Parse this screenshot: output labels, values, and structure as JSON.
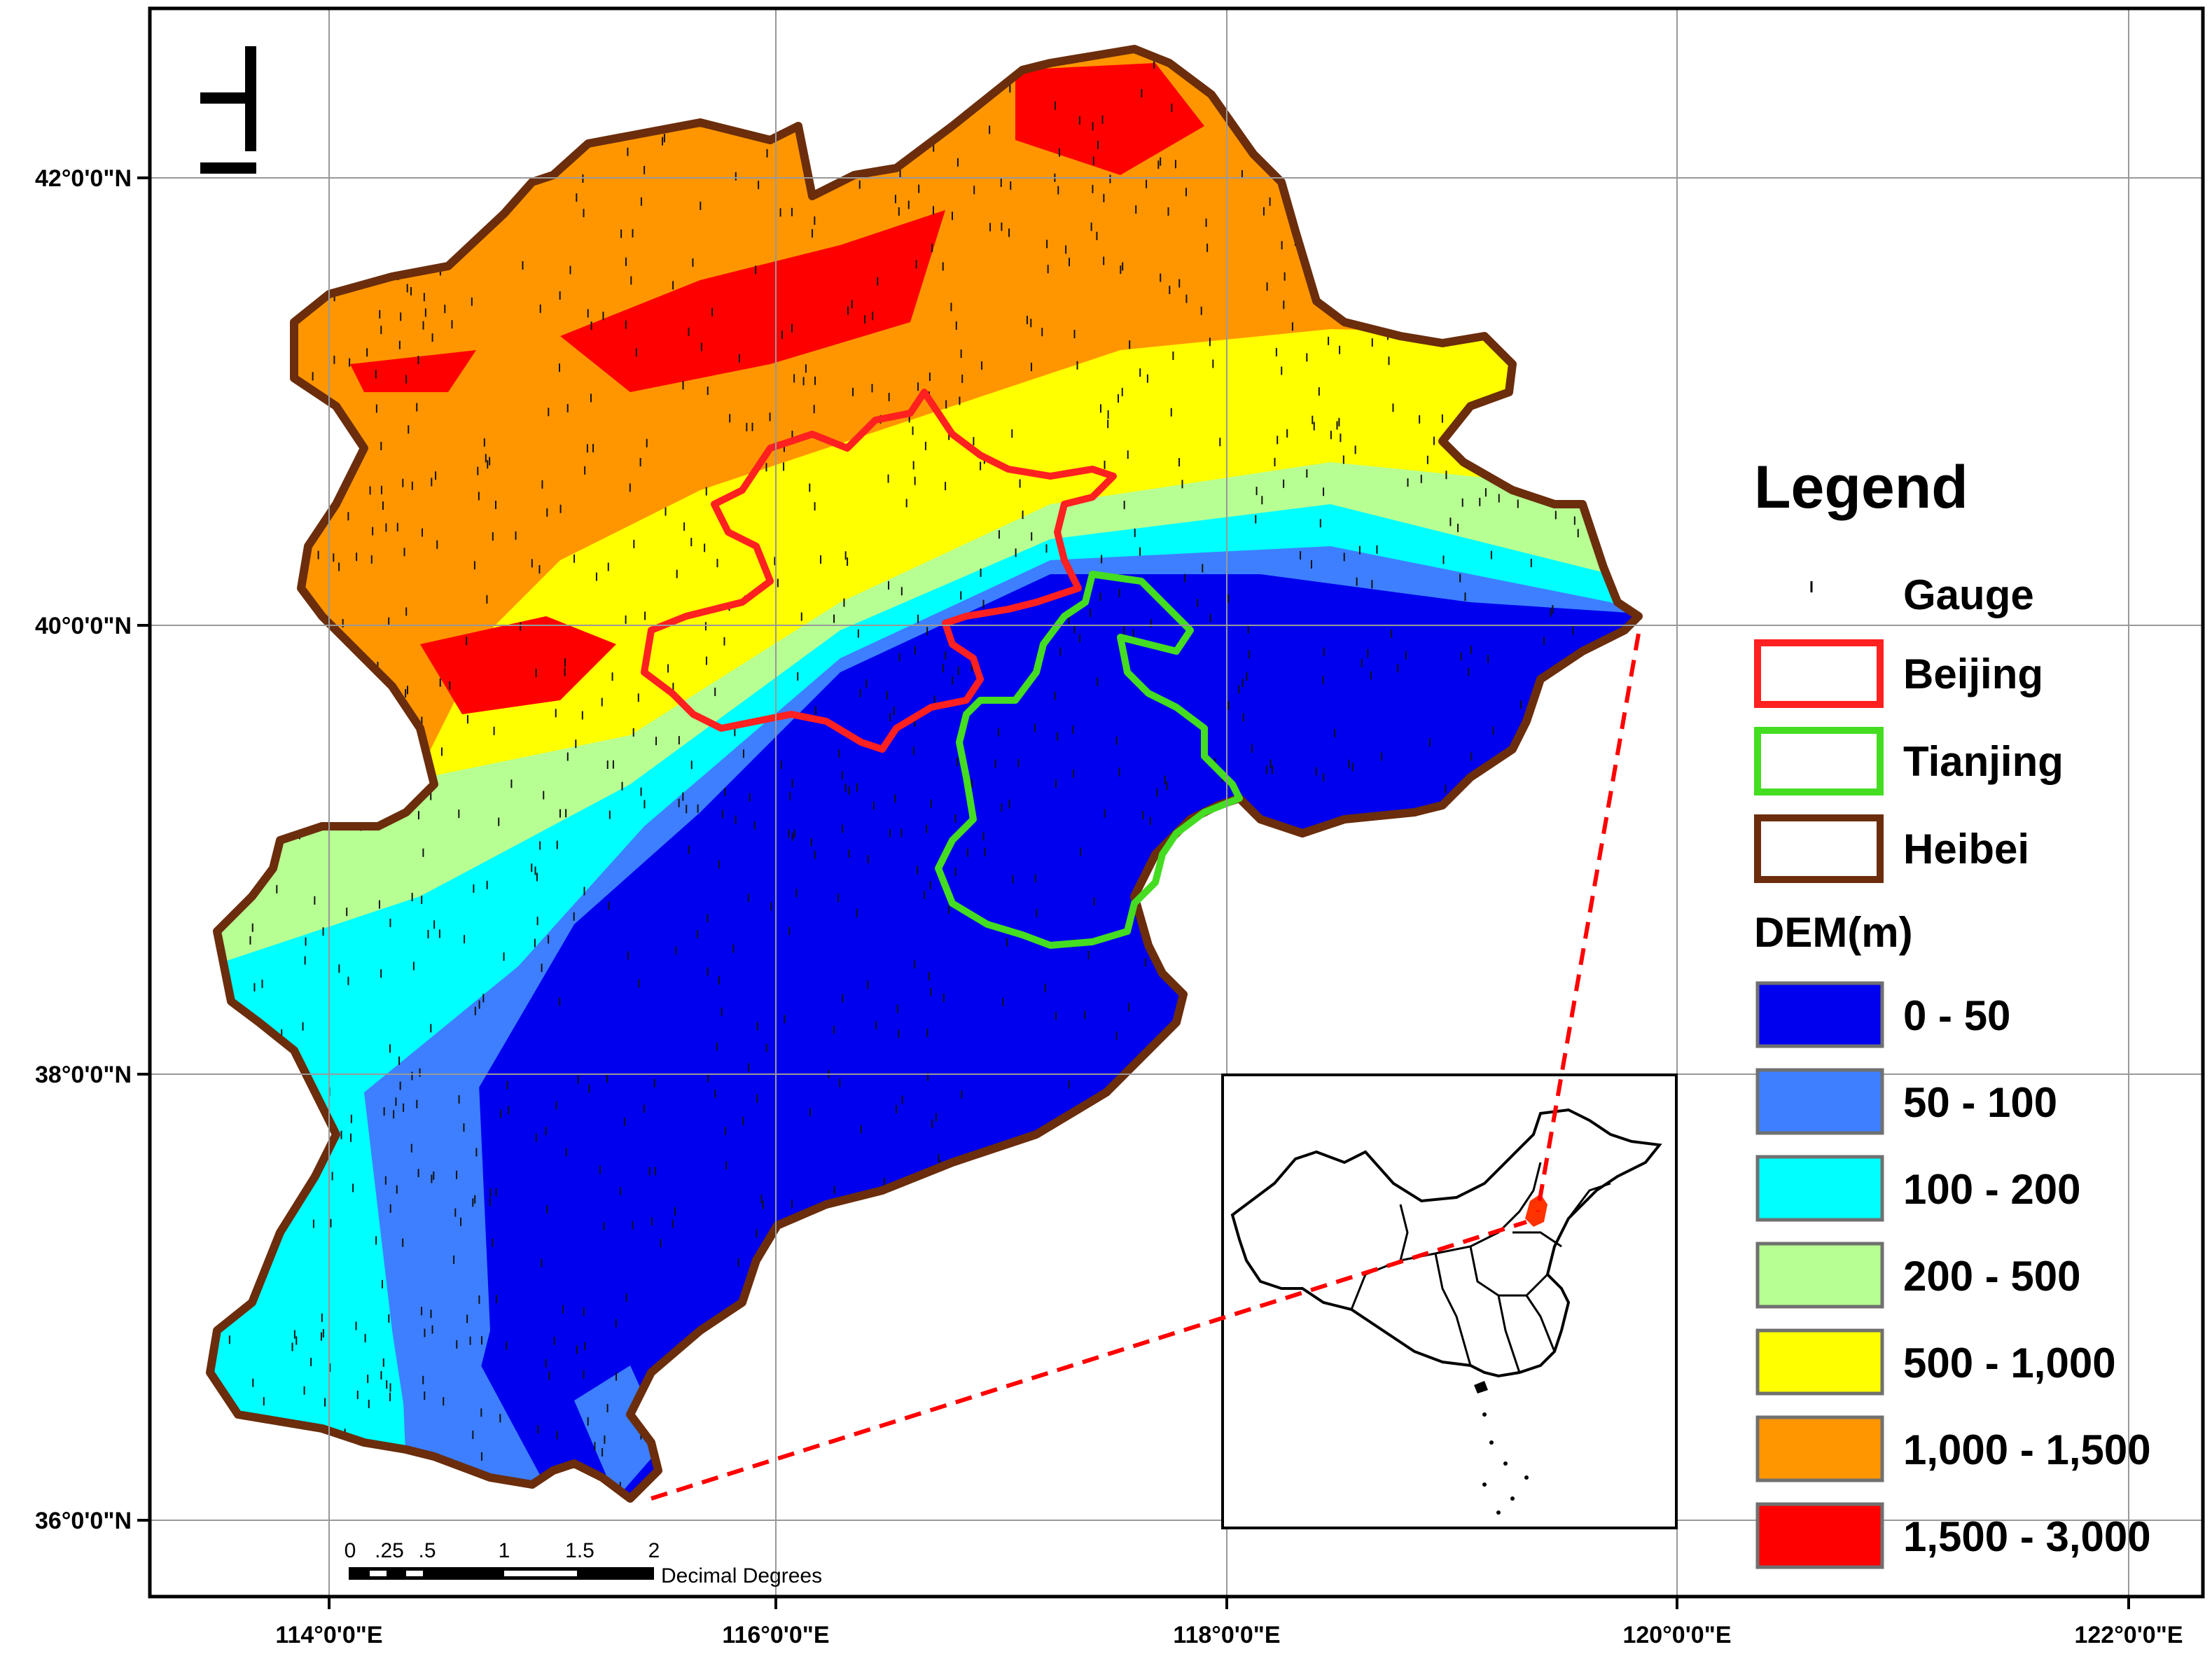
{
  "map": {
    "lat_ticks": [
      "42°0'0\"N",
      "40°0'0\"N",
      "38°0'0\"N",
      "36°0'0\"N"
    ],
    "lon_ticks": [
      "114°0'0\"E",
      "116°0'0\"E",
      "118°0'0\"E",
      "120°0'0\"E",
      "122°0'0\"E"
    ],
    "north_arrow_icon": "north-arrow-icon"
  },
  "legend": {
    "title": "Legend",
    "gauge_label": "Gauge",
    "boundaries": [
      {
        "label": "Beijing",
        "color": "#ff2020"
      },
      {
        "label": "Tianjing",
        "color": "#44dd22"
      },
      {
        "label": "Heibei",
        "color": "#6b2d0c"
      }
    ],
    "dem_header": "DEM(m)",
    "dem_classes": [
      {
        "label": "0 - 50",
        "color": "#0000ee"
      },
      {
        "label": "50 - 100",
        "color": "#3d7fff"
      },
      {
        "label": "100 - 200",
        "color": "#00ffff"
      },
      {
        "label": "200 - 500",
        "color": "#b7ff93"
      },
      {
        "label": "500 - 1,000",
        "color": "#ffff00"
      },
      {
        "label": "1,000 - 1,500",
        "color": "#ff9600"
      },
      {
        "label": "1,500 - 3,000",
        "color": "#ff0000"
      }
    ]
  },
  "scale_bar": {
    "ticks": [
      "0",
      ".25",
      ".5",
      "1",
      "1.5",
      "2"
    ],
    "unit": "Decimal Degrees"
  },
  "inset": {
    "name": "china-locator-map"
  }
}
